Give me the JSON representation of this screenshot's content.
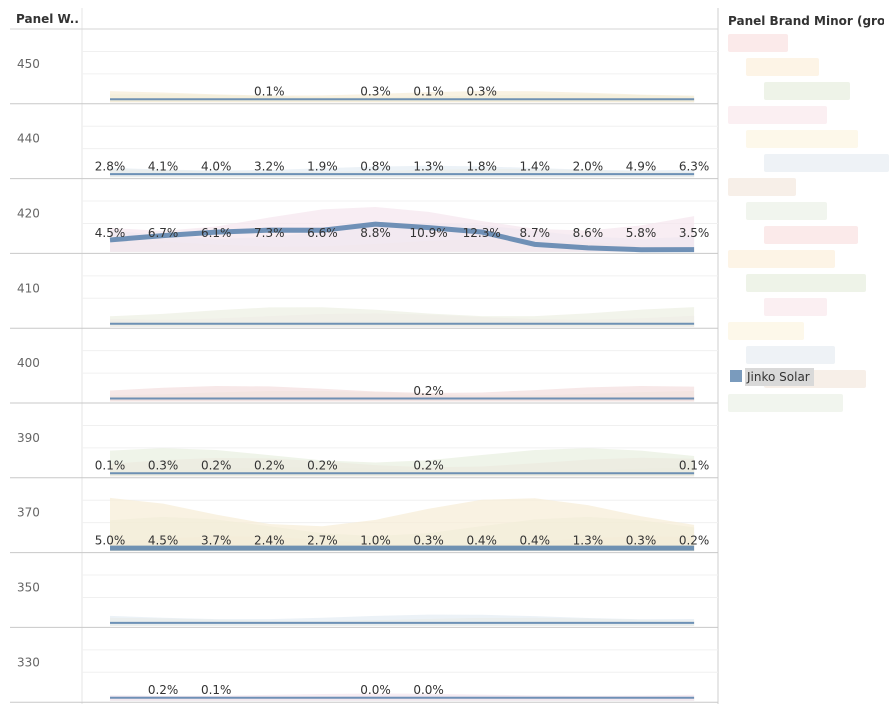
{
  "chart_data": {
    "type": "area",
    "title": "",
    "row_header": "Panel W..",
    "legend_title": "Panel Brand Minor (gro..",
    "highlighted_series": "Jinko Solar",
    "highlight_color": "#4e79a7",
    "x_count": 12,
    "rows": [
      {
        "label": "450",
        "labels": [
          {
            "i": 3,
            "text": "0.1%"
          },
          {
            "i": 5,
            "text": "0.3%"
          },
          {
            "i": 6,
            "text": "0.1%"
          },
          {
            "i": 7,
            "text": "0.3%"
          }
        ]
      },
      {
        "label": "440",
        "labels": [
          {
            "i": 0,
            "text": "2.8%"
          },
          {
            "i": 1,
            "text": "4.1%"
          },
          {
            "i": 2,
            "text": "4.0%"
          },
          {
            "i": 3,
            "text": "3.2%"
          },
          {
            "i": 4,
            "text": "1.9%"
          },
          {
            "i": 5,
            "text": "0.8%"
          },
          {
            "i": 6,
            "text": "1.3%"
          },
          {
            "i": 7,
            "text": "1.8%"
          },
          {
            "i": 8,
            "text": "1.4%"
          },
          {
            "i": 9,
            "text": "2.0%"
          },
          {
            "i": 10,
            "text": "4.9%"
          },
          {
            "i": 11,
            "text": "6.3%"
          }
        ]
      },
      {
        "label": "420",
        "labels": [
          {
            "i": 0,
            "text": "4.5%"
          },
          {
            "i": 1,
            "text": "6.7%"
          },
          {
            "i": 2,
            "text": "6.1%"
          },
          {
            "i": 3,
            "text": "7.3%"
          },
          {
            "i": 4,
            "text": "6.6%"
          },
          {
            "i": 5,
            "text": "8.8%"
          },
          {
            "i": 6,
            "text": "10.9%"
          },
          {
            "i": 7,
            "text": "12.3%"
          },
          {
            "i": 8,
            "text": "8.7%"
          },
          {
            "i": 9,
            "text": "8.6%"
          },
          {
            "i": 10,
            "text": "5.8%"
          },
          {
            "i": 11,
            "text": "3.5%"
          }
        ]
      },
      {
        "label": "410",
        "labels": []
      },
      {
        "label": "400",
        "labels": [
          {
            "i": 6,
            "text": "0.2%"
          }
        ]
      },
      {
        "label": "390",
        "labels": [
          {
            "i": 0,
            "text": "0.1%"
          },
          {
            "i": 1,
            "text": "0.3%"
          },
          {
            "i": 2,
            "text": "0.2%"
          },
          {
            "i": 3,
            "text": "0.2%"
          },
          {
            "i": 4,
            "text": "0.2%"
          },
          {
            "i": 6,
            "text": "0.2%"
          },
          {
            "i": 11,
            "text": "0.1%"
          }
        ]
      },
      {
        "label": "370",
        "labels": [
          {
            "i": 0,
            "text": "5.0%"
          },
          {
            "i": 1,
            "text": "4.5%"
          },
          {
            "i": 2,
            "text": "3.7%"
          },
          {
            "i": 3,
            "text": "2.4%"
          },
          {
            "i": 4,
            "text": "2.7%"
          },
          {
            "i": 5,
            "text": "1.0%"
          },
          {
            "i": 6,
            "text": "0.3%"
          },
          {
            "i": 7,
            "text": "0.4%"
          },
          {
            "i": 8,
            "text": "0.4%"
          },
          {
            "i": 9,
            "text": "1.3%"
          },
          {
            "i": 10,
            "text": "0.3%"
          },
          {
            "i": 11,
            "text": "0.2%"
          }
        ]
      },
      {
        "label": "350",
        "labels": []
      },
      {
        "label": "330",
        "labels": [
          {
            "i": 1,
            "text": "0.2%"
          },
          {
            "i": 2,
            "text": "0.1%"
          },
          {
            "i": 5,
            "text": "0.0%"
          },
          {
            "i": 6,
            "text": "0.0%"
          }
        ]
      }
    ]
  }
}
